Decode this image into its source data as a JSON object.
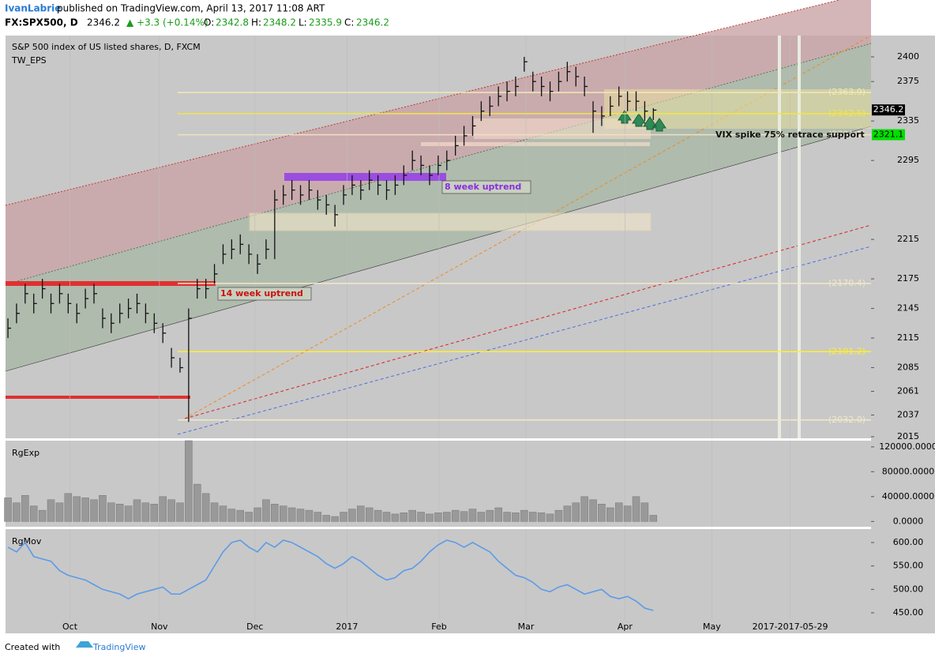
{
  "header": {
    "author": "IvanLabrie",
    "published": "published on TradingView.com, April 13, 2017 11:08 ART",
    "symbol": "FX:SPX500, D",
    "last": "2346.2",
    "change": "▲ +3.3 (+0.14%)",
    "o_label": "O:",
    "o": "2342.8",
    "h_label": "H:",
    "h": "2348.2",
    "l_label": "L:",
    "l": "2335.9",
    "c_label": "C:",
    "c": "2346.2"
  },
  "footer": {
    "created": "Created with",
    "brand": "TradingView"
  },
  "chart_data": [
    {
      "type": "ohlc",
      "title": "S&P 500 index of US listed shares, D, FXCM",
      "subtitle": "TW_EPS",
      "xlim": [
        -0.28,
        100.3
      ],
      "xticks": [
        {
          "value": 7.2,
          "label": "Oct"
        },
        {
          "value": 17.6,
          "label": "Nov"
        },
        {
          "value": 28.7,
          "label": "Dec"
        },
        {
          "value": 39.4,
          "label": "2017"
        },
        {
          "value": 50.1,
          "label": "Feb"
        },
        {
          "value": 60.2,
          "label": "Mar"
        },
        {
          "value": 71.7,
          "label": "Apr"
        },
        {
          "value": 81.8,
          "label": "May"
        },
        {
          "value": 90.9,
          "label": "2017-2017-05-29"
        }
      ],
      "ylim": [
        2013.4,
        2421.6
      ],
      "yticks": [
        2400,
        2375,
        2335,
        2295,
        2215,
        2175,
        2145,
        2115,
        2085,
        2061,
        2037,
        2015
      ],
      "color": "#111111",
      "close": [
        2125,
        2140,
        2160,
        2150,
        2165,
        2150,
        2160,
        2150,
        2140,
        2155,
        2160,
        2135,
        2130,
        2140,
        2145,
        2150,
        2140,
        2130,
        2120,
        2095,
        2085,
        2135,
        2165,
        2165,
        2180,
        2200,
        2205,
        2210,
        2200,
        2190,
        2205,
        2255,
        2260,
        2265,
        2260,
        2265,
        2255,
        2250,
        2240,
        2260,
        2270,
        2265,
        2275,
        2270,
        2265,
        2270,
        2280,
        2295,
        2290,
        2280,
        2290,
        2295,
        2310,
        2320,
        2330,
        2345,
        2350,
        2360,
        2365,
        2370,
        2395,
        2375,
        2370,
        2365,
        2375,
        2385,
        2380,
        2370,
        2345,
        2340,
        2350,
        2360,
        2355,
        2355,
        2345,
        2346
      ],
      "high": [
        2135,
        2150,
        2170,
        2160,
        2175,
        2160,
        2170,
        2160,
        2150,
        2165,
        2170,
        2145,
        2140,
        2150,
        2155,
        2160,
        2150,
        2140,
        2130,
        2105,
        2095,
        2145,
        2175,
        2175,
        2190,
        2210,
        2215,
        2220,
        2210,
        2200,
        2215,
        2265,
        2270,
        2275,
        2270,
        2275,
        2265,
        2260,
        2250,
        2270,
        2280,
        2275,
        2285,
        2280,
        2275,
        2280,
        2290,
        2305,
        2300,
        2290,
        2300,
        2305,
        2320,
        2330,
        2340,
        2355,
        2360,
        2370,
        2375,
        2380,
        2400,
        2385,
        2380,
        2375,
        2385,
        2395,
        2390,
        2380,
        2355,
        2350,
        2360,
        2370,
        2365,
        2365,
        2355,
        2348
      ],
      "low": [
        2115,
        2130,
        2150,
        2140,
        2155,
        2140,
        2150,
        2140,
        2130,
        2145,
        2150,
        2125,
        2120,
        2130,
        2135,
        2140,
        2130,
        2120,
        2110,
        2085,
        2080,
        2030,
        2155,
        2155,
        2170,
        2190,
        2195,
        2200,
        2190,
        2180,
        2195,
        2195,
        2250,
        2255,
        2250,
        2255,
        2245,
        2240,
        2228,
        2250,
        2260,
        2255,
        2265,
        2260,
        2255,
        2260,
        2270,
        2285,
        2280,
        2270,
        2280,
        2285,
        2300,
        2310,
        2320,
        2335,
        2340,
        2350,
        2355,
        2360,
        2385,
        2365,
        2360,
        2355,
        2365,
        2375,
        2370,
        2360,
        2323,
        2330,
        2340,
        2350,
        2345,
        2345,
        2335,
        2336
      ],
      "levels": [
        {
          "value": 2363.9,
          "label": "(2363.9)",
          "color": "#f3e7b3"
        },
        {
          "value": 2342.5,
          "label": "(2342.5)",
          "color": "#f5e642"
        },
        {
          "value": 2321.1,
          "label": "(2321.1)",
          "color": "#f0e0c0"
        },
        {
          "value": 2170.4,
          "label": "(2170.4)",
          "color": "#f3e7c8"
        },
        {
          "value": 2101.2,
          "label": "(2101.2)",
          "color": "#ffee33"
        },
        {
          "value": 2032.0,
          "label": "(2032.0)",
          "color": "#f3e7c8"
        }
      ],
      "annotations": [
        "14 week uptrend",
        "8 week uptrend",
        "VIX spike 75% retrace support"
      ],
      "price_tags": [
        {
          "value": 2346.2,
          "label": "2346.2",
          "color": "#000000"
        },
        {
          "value": 2321.1,
          "label": "2321.1",
          "color": "#00e000"
        }
      ]
    },
    {
      "type": "bar",
      "title": "RgExp",
      "ylim": [
        -8500,
        130000
      ],
      "color": "#999999",
      "yticks": [
        {
          "value": 120000,
          "label": "120000.0000"
        },
        {
          "value": 80000,
          "label": "80000.0000"
        },
        {
          "value": 40000,
          "label": "40000.0000"
        },
        {
          "value": 0,
          "label": "0.0000"
        }
      ],
      "values": [
        38000,
        30000,
        42000,
        25000,
        18000,
        35000,
        30000,
        45000,
        40000,
        38000,
        35000,
        42000,
        30000,
        28000,
        25000,
        35000,
        30000,
        28000,
        40000,
        35000,
        30000,
        130000,
        60000,
        45000,
        30000,
        25000,
        20000,
        18000,
        15000,
        22000,
        35000,
        28000,
        25000,
        22000,
        20000,
        18000,
        15000,
        10000,
        8000,
        15000,
        20000,
        25000,
        22000,
        18000,
        15000,
        12000,
        14000,
        18000,
        15000,
        12000,
        14000,
        15000,
        18000,
        16000,
        20000,
        15000,
        18000,
        22000,
        15000,
        14000,
        18000,
        15000,
        14000,
        12000,
        18000,
        25000,
        30000,
        40000,
        35000,
        28000,
        22000,
        30000,
        25000,
        40000,
        30000,
        10000
      ]
    },
    {
      "type": "line",
      "title": "RgMov",
      "ylim": [
        434.8,
        628.6
      ],
      "color": "#5b9be8",
      "yticks": [
        {
          "value": 600,
          "label": "600.00"
        },
        {
          "value": 550,
          "label": "550.00"
        },
        {
          "value": 500,
          "label": "500.00"
        },
        {
          "value": 450,
          "label": "450.00"
        }
      ],
      "values": [
        590,
        580,
        600,
        570,
        565,
        560,
        540,
        530,
        525,
        520,
        510,
        500,
        495,
        490,
        480,
        490,
        495,
        500,
        505,
        490,
        490,
        500,
        510,
        520,
        550,
        580,
        600,
        605,
        590,
        580,
        600,
        590,
        605,
        600,
        590,
        580,
        570,
        555,
        545,
        555,
        570,
        560,
        545,
        530,
        520,
        525,
        540,
        545,
        560,
        580,
        595,
        605,
        600,
        590,
        600,
        590,
        580,
        560,
        545,
        530,
        525,
        515,
        500,
        495,
        505,
        510,
        500,
        490,
        495,
        500,
        485,
        480,
        485,
        475,
        460,
        455
      ]
    }
  ]
}
